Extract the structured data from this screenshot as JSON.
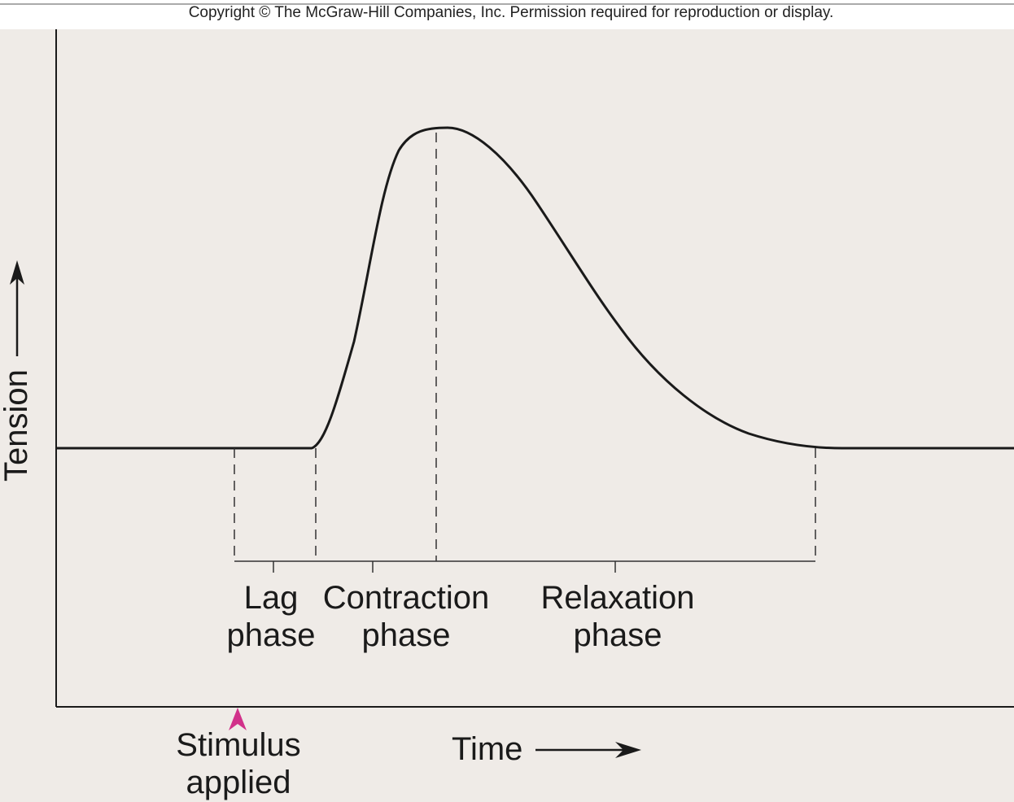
{
  "copyright": "Copyright © The McGraw-Hill Companies, Inc. Permission required for reproduction or display.",
  "axes": {
    "y_label": "Tension",
    "x_label": "Time"
  },
  "phases": [
    {
      "line1": "Lag",
      "line2": "phase"
    },
    {
      "line1": "Contraction",
      "line2": "phase"
    },
    {
      "line1": "Relaxation",
      "line2": "phase"
    }
  ],
  "stimulus": {
    "line1": "Stimulus",
    "line2": "applied"
  },
  "colors": {
    "background": "#efebe7",
    "ink": "#1a1a1a",
    "stimulus_arrow": "#d1318a"
  }
}
